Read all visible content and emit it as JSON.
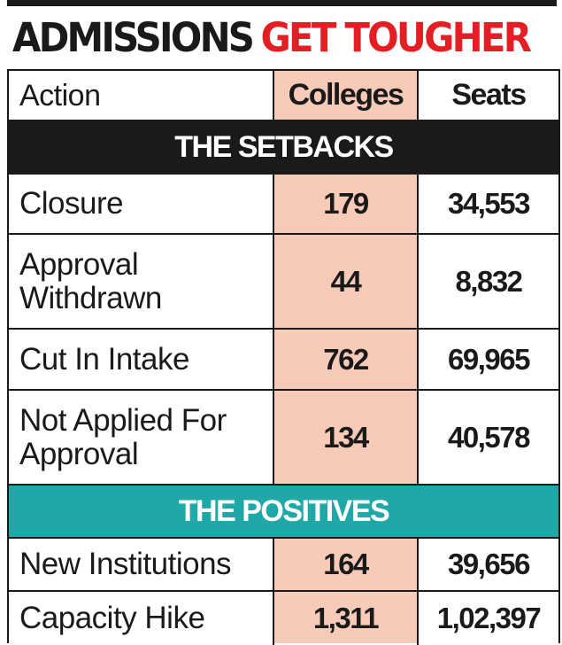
{
  "headline": {
    "part_black": "ADMISSIONS",
    "part_red": "GET TOUGHER"
  },
  "colors": {
    "headline_red": "#e31e24",
    "setbacks_band": "#1a1a1a",
    "positives_band": "#20a8a8",
    "colleges_column": "#f8cbb8"
  },
  "chart_data": {
    "type": "table",
    "title": "ADMISSIONS GET TOUGHER",
    "columns": [
      "Action",
      "Colleges",
      "Seats"
    ],
    "sections": [
      {
        "name": "THE SETBACKS",
        "rows": [
          {
            "action": "Closure",
            "colleges": "179",
            "seats": "34,553"
          },
          {
            "action": "Approval Withdrawn",
            "colleges": "44",
            "seats": "8,832"
          },
          {
            "action": "Cut In Intake",
            "colleges": "762",
            "seats": "69,965"
          },
          {
            "action": "Not Applied For Approval",
            "colleges": "134",
            "seats": "40,578"
          }
        ]
      },
      {
        "name": "THE POSITIVES",
        "rows": [
          {
            "action": "New Institutions",
            "colleges": "164",
            "seats": "39,656"
          },
          {
            "action": "Capacity Hike",
            "colleges": "1,311",
            "seats": "1,02,397"
          }
        ]
      }
    ]
  }
}
